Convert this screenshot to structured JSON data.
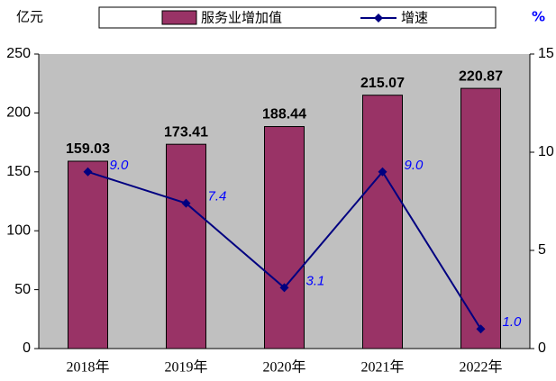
{
  "chart_data": {
    "type": "bar",
    "y_label": "亿元",
    "y2_label": "%",
    "categories": [
      "2018年",
      "2019年",
      "2020年",
      "2021年",
      "2022年"
    ],
    "series": [
      {
        "name": "服务业增加值",
        "type": "bar",
        "color": "#993366",
        "values": [
          159.03,
          173.41,
          188.44,
          215.07,
          220.87
        ]
      },
      {
        "name": "增速",
        "type": "line",
        "axis": "y2",
        "color": "#000080",
        "values": [
          9.0,
          7.4,
          3.1,
          9.0,
          1.0
        ],
        "value_labels": [
          "9.0",
          "7.4",
          "3.1",
          "9.0",
          "1.0"
        ]
      }
    ],
    "ylim": [
      0,
      250
    ],
    "yticks": [
      0,
      50,
      100,
      150,
      200,
      250
    ],
    "y2lim": [
      0,
      15
    ],
    "y2ticks": [
      0,
      5,
      10,
      15
    ]
  }
}
